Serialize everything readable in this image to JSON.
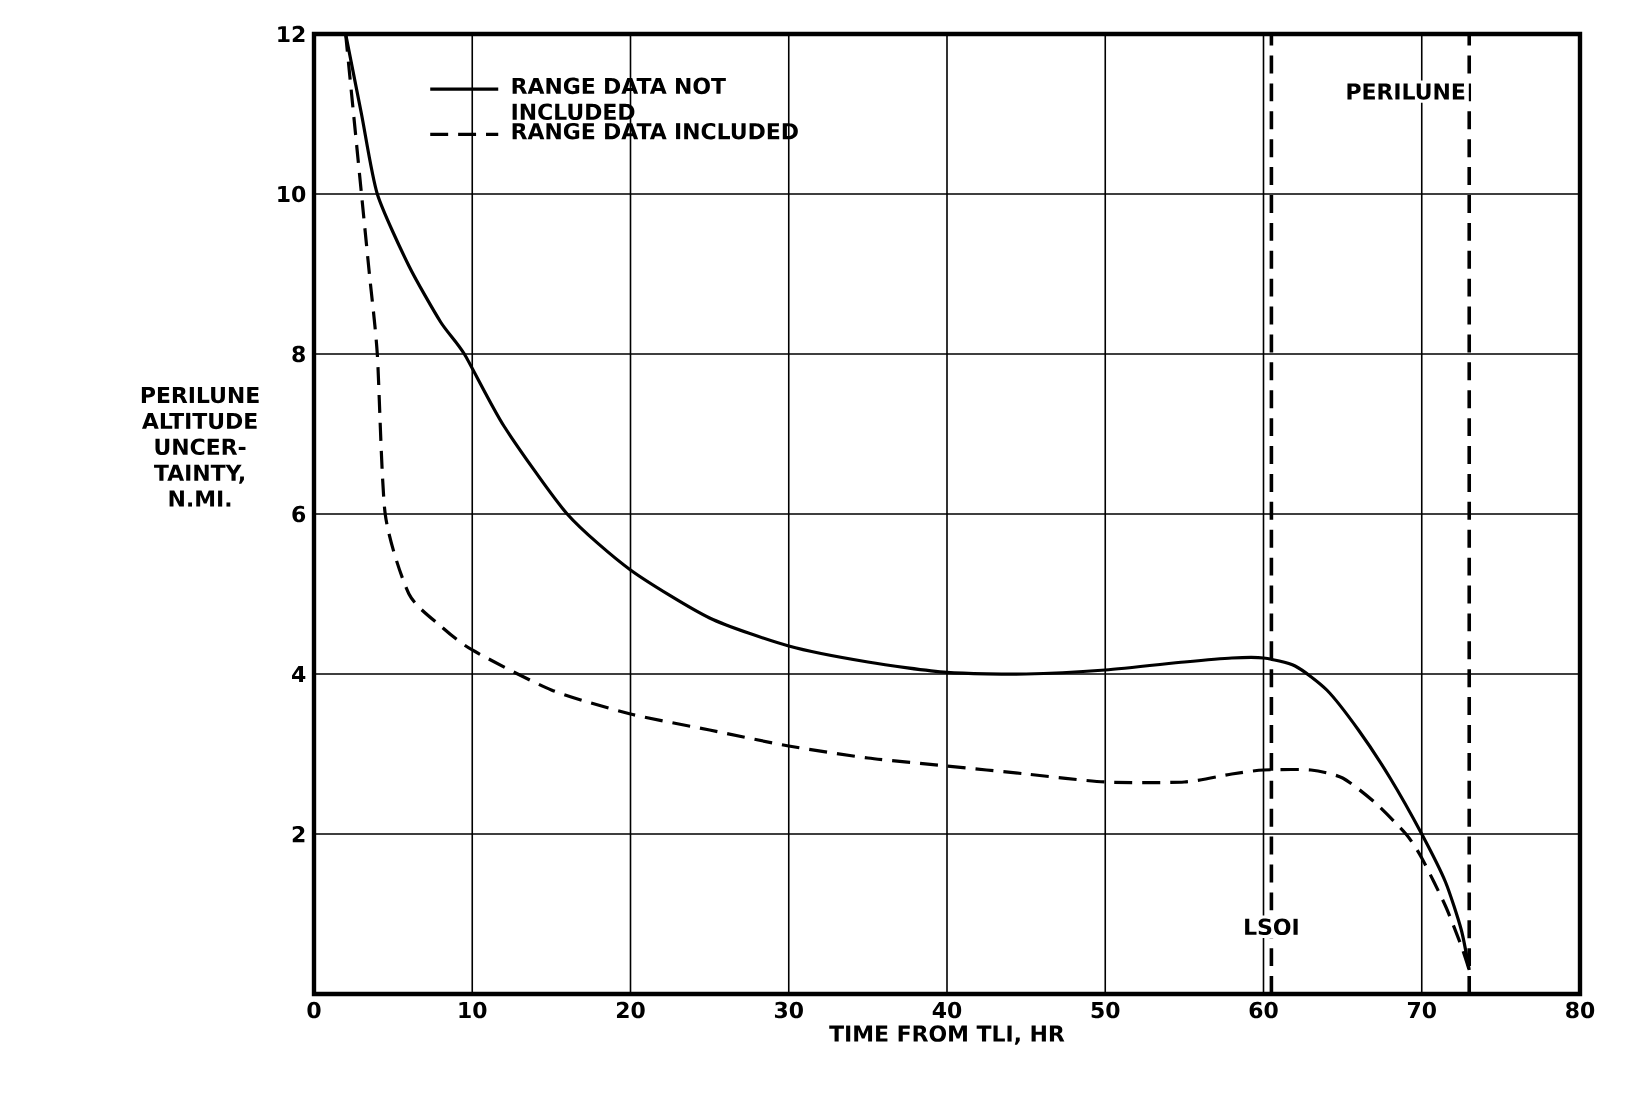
{
  "chart_data": {
    "type": "line",
    "xlabel": "TIME FROM TLI, HR",
    "ylabel": "PERILUNE ALTITUDE UNCER-TAINTY, N.MI.",
    "xlim": [
      0,
      80
    ],
    "ylim": [
      0,
      12
    ],
    "xticks": [
      0,
      10,
      20,
      30,
      40,
      50,
      60,
      70,
      80
    ],
    "yticks": [
      2,
      4,
      6,
      8,
      10,
      12
    ],
    "grid": true,
    "legend": "top",
    "series": [
      {
        "name": "RANGE DATA NOT INCLUDED",
        "color": "#000000",
        "line_style": "solid",
        "x": [
          2,
          3,
          4,
          6,
          8,
          9.5,
          12,
          16,
          20,
          25,
          30,
          35,
          40,
          45,
          50,
          55,
          58,
          60,
          62,
          64,
          66,
          68,
          70,
          71.5,
          72.5,
          73
        ],
        "values": [
          12,
          11,
          10,
          9.1,
          8.4,
          8,
          7.1,
          6,
          5.3,
          4.7,
          4.35,
          4.15,
          4.02,
          4.0,
          4.05,
          4.15,
          4.2,
          4.2,
          4.1,
          3.8,
          3.3,
          2.7,
          2.0,
          1.4,
          0.8,
          0.3
        ]
      },
      {
        "name": "RANGE DATA INCLUDED",
        "color": "#000000",
        "line_style": "dashed",
        "x": [
          2,
          2.5,
          3,
          3.5,
          4,
          4.5,
          6,
          8,
          10,
          15,
          20,
          25,
          30,
          35,
          40,
          45,
          50,
          55,
          58,
          60,
          63,
          65,
          67,
          69,
          70,
          71.5,
          72.5,
          73
        ],
        "values": [
          12,
          11,
          10,
          9,
          8,
          6,
          5,
          4.6,
          4.3,
          3.8,
          3.5,
          3.3,
          3.1,
          2.95,
          2.85,
          2.75,
          2.65,
          2.65,
          2.75,
          2.8,
          2.8,
          2.7,
          2.4,
          2.0,
          1.7,
          1.1,
          0.6,
          0.3
        ]
      }
    ],
    "ref_lines": [
      {
        "axis": "x",
        "value": 60.5,
        "label": "LSOI",
        "color": "#000000",
        "line_style": "dashed"
      },
      {
        "axis": "x",
        "value": 73,
        "label": "PERILUNE",
        "color": "#000000",
        "line_style": "dashed"
      }
    ]
  }
}
